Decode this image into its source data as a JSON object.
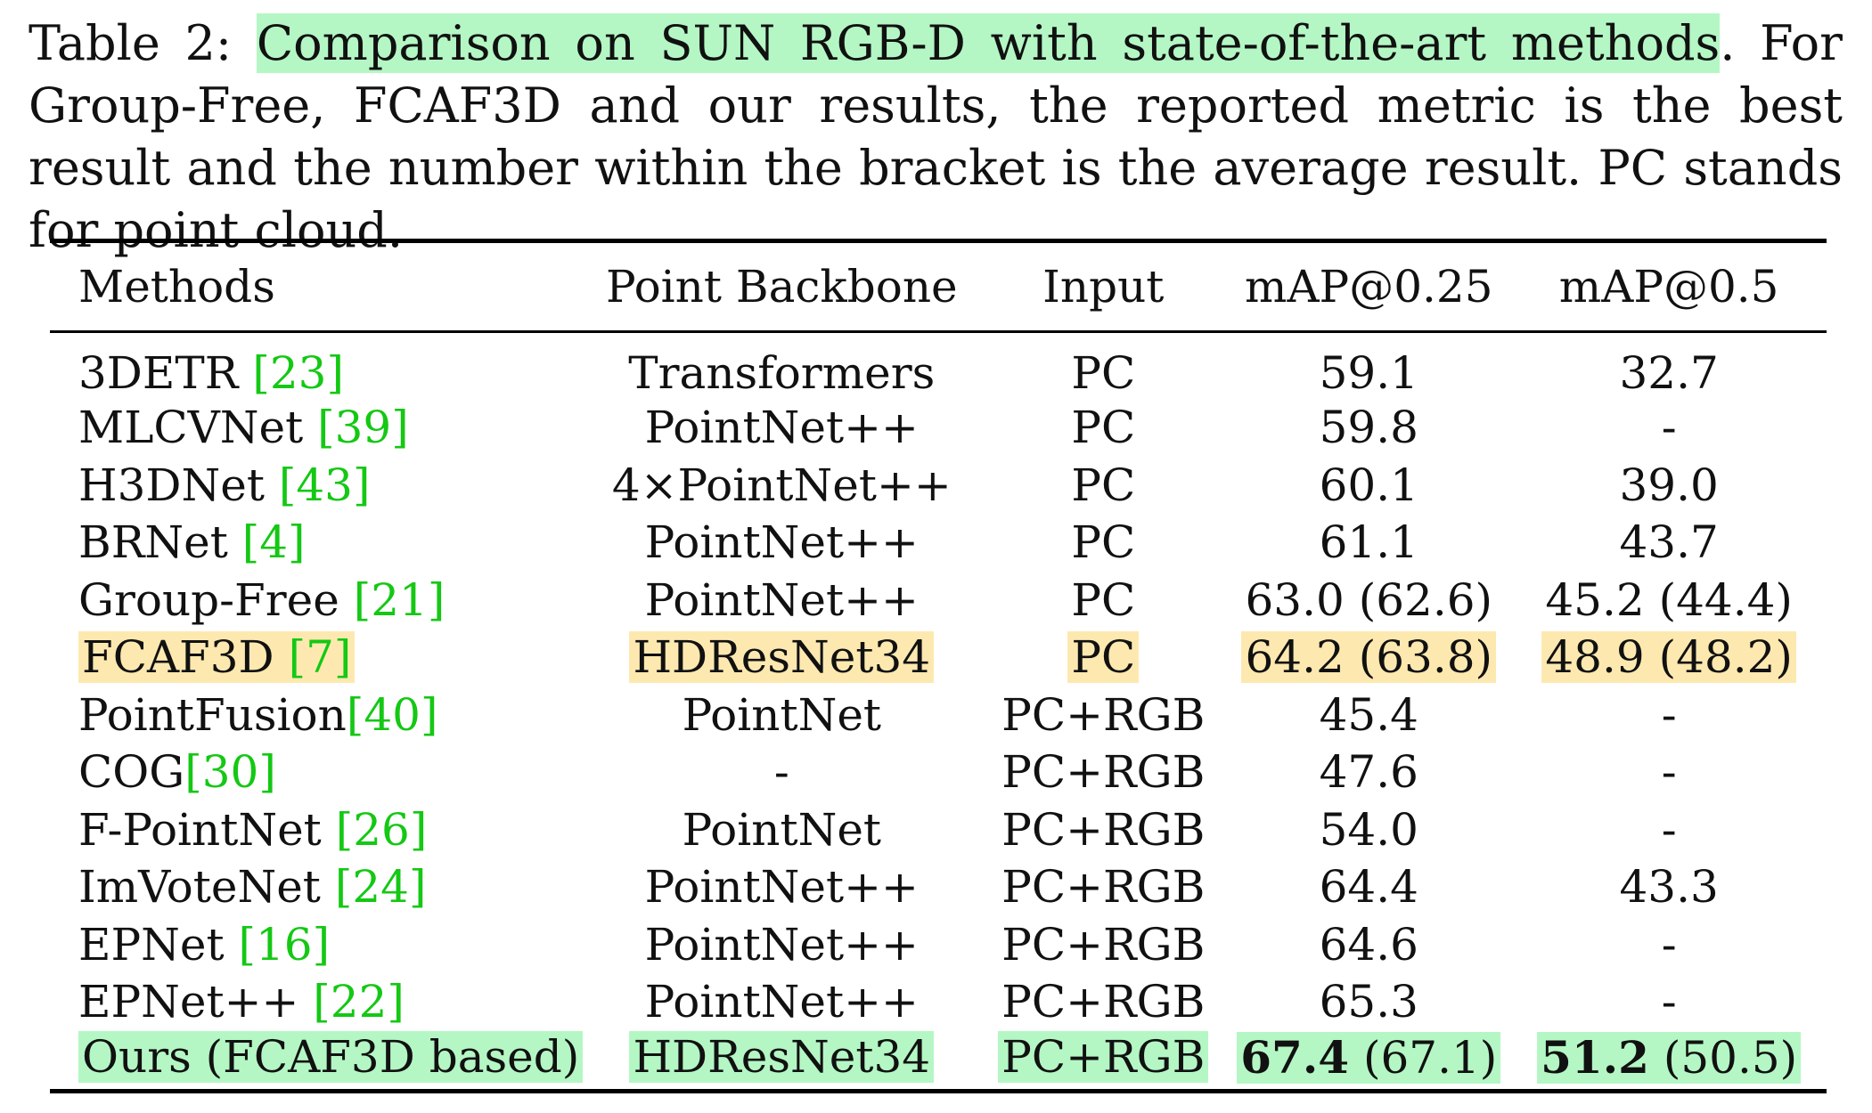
{
  "caption": {
    "label": "Table 2: ",
    "highlight": "Comparison on SUN RGB-D with state-of-the-art methods",
    "rest": ". For Group-Free, FCAF3D and our results, the reported metric is the best result and the number within the bracket is the average result. PC stands for point cloud."
  },
  "table": {
    "headers": [
      "Methods",
      "Point Backbone",
      "Input",
      "mAP@0.25",
      "mAP@0.5"
    ],
    "rows": [
      {
        "method": "3DETR",
        "sep": " ",
        "cite": "[23]",
        "backbone": "Transformers",
        "input": "PC",
        "map25": "59.1",
        "map25_avg": "",
        "map50": "32.7",
        "map50_avg": "",
        "highlight": "",
        "bold": false
      },
      {
        "method": "MLCVNet",
        "sep": " ",
        "cite": "[39]",
        "backbone": "PointNet++",
        "input": "PC",
        "map25": "59.8",
        "map25_avg": "",
        "map50": "-",
        "map50_avg": "",
        "highlight": "",
        "bold": false
      },
      {
        "method": "H3DNet",
        "sep": " ",
        "cite": "[43]",
        "backbone": "4×PointNet++",
        "input": "PC",
        "map25": "60.1",
        "map25_avg": "",
        "map50": "39.0",
        "map50_avg": "",
        "highlight": "",
        "bold": false
      },
      {
        "method": "BRNet",
        "sep": " ",
        "cite": "[4]",
        "backbone": "PointNet++",
        "input": "PC",
        "map25": "61.1",
        "map25_avg": "",
        "map50": "43.7",
        "map50_avg": "",
        "highlight": "",
        "bold": false
      },
      {
        "method": "Group-Free",
        "sep": " ",
        "cite": "[21]",
        "backbone": "PointNet++",
        "input": "PC",
        "map25": "63.0",
        "map25_avg": "(62.6)",
        "map50": "45.2",
        "map50_avg": "(44.4)",
        "highlight": "",
        "bold": false
      },
      {
        "method": "FCAF3D",
        "sep": " ",
        "cite": "[7]",
        "backbone": "HDResNet34",
        "input": "PC",
        "map25": "64.2",
        "map25_avg": "(63.8)",
        "map50": "48.9",
        "map50_avg": "(48.2)",
        "highlight": "yellow",
        "bold": false
      },
      {
        "method": "PointFusion",
        "sep": "",
        "cite": "[40]",
        "backbone": "PointNet",
        "input": "PC+RGB",
        "map25": "45.4",
        "map25_avg": "",
        "map50": "-",
        "map50_avg": "",
        "highlight": "",
        "bold": false
      },
      {
        "method": "COG",
        "sep": "",
        "cite": "[30]",
        "backbone": "-",
        "input": "PC+RGB",
        "map25": "47.6",
        "map25_avg": "",
        "map50": "-",
        "map50_avg": "",
        "highlight": "",
        "bold": false
      },
      {
        "method": "F-PointNet",
        "sep": " ",
        "cite": "[26]",
        "backbone": "PointNet",
        "input": "PC+RGB",
        "map25": "54.0",
        "map25_avg": "",
        "map50": "-",
        "map50_avg": "",
        "highlight": "",
        "bold": false
      },
      {
        "method": "ImVoteNet",
        "sep": " ",
        "cite": "[24]",
        "backbone": "PointNet++",
        "input": "PC+RGB",
        "map25": "64.4",
        "map25_avg": "",
        "map50": "43.3",
        "map50_avg": "",
        "highlight": "",
        "bold": false
      },
      {
        "method": "EPNet",
        "sep": " ",
        "cite": "[16]",
        "backbone": "PointNet++",
        "input": "PC+RGB",
        "map25": "64.6",
        "map25_avg": "",
        "map50": "-",
        "map50_avg": "",
        "highlight": "",
        "bold": false
      },
      {
        "method": "EPNet++",
        "sep": " ",
        "cite": "[22]",
        "backbone": "PointNet++",
        "input": "PC+RGB",
        "map25": "65.3",
        "map25_avg": "",
        "map50": "-",
        "map50_avg": "",
        "highlight": "",
        "bold": false
      },
      {
        "method": "Ours (FCAF3D based)",
        "sep": "",
        "cite": "",
        "backbone": "HDResNet34",
        "input": "PC+RGB",
        "map25": "67.4",
        "map25_avg": "(67.1)",
        "map50": "51.2",
        "map50_avg": "(50.5)",
        "highlight": "green",
        "bold": true
      }
    ]
  }
}
